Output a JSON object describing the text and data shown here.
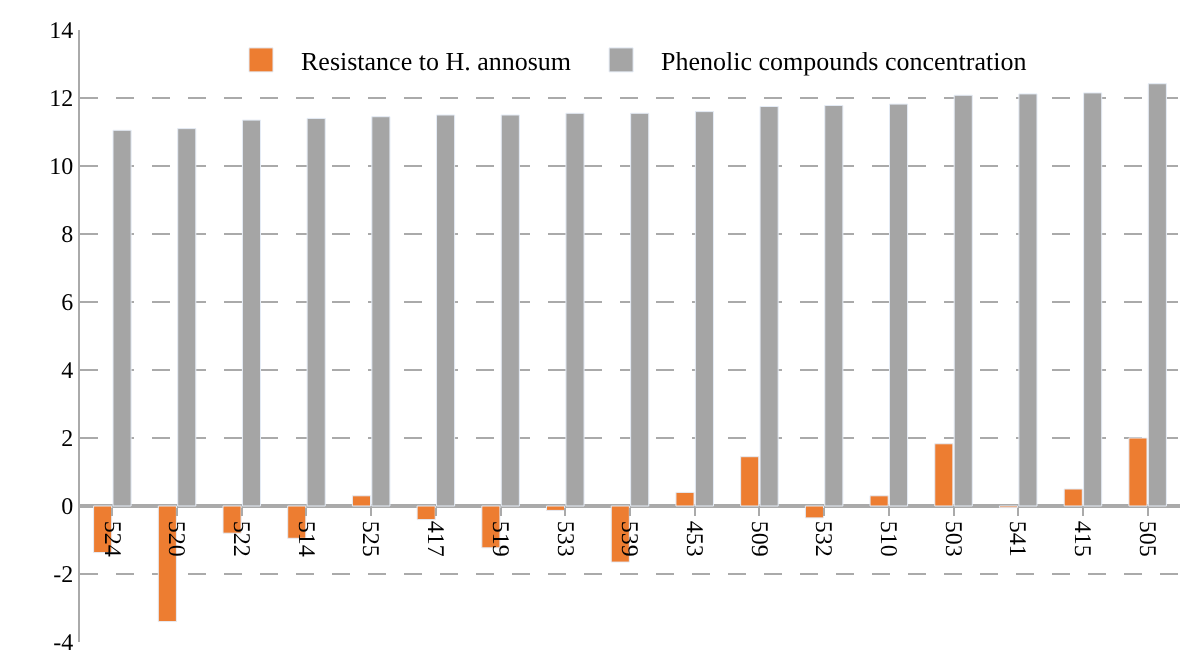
{
  "chart_data": {
    "type": "bar",
    "categories": [
      "524",
      "520",
      "522",
      "514",
      "525",
      "417",
      "519",
      "533",
      "539",
      "453",
      "509",
      "532",
      "510",
      "503",
      "541",
      "415",
      "505"
    ],
    "series": [
      {
        "name": "Resistance to H. annosum",
        "color": "#ed7d31",
        "values": [
          -1.37,
          -3.4,
          -0.8,
          -0.95,
          0.3,
          -0.4,
          -1.23,
          -0.13,
          -1.65,
          0.4,
          1.45,
          -0.35,
          0.3,
          1.83,
          -0.05,
          0.5,
          2.0
        ]
      },
      {
        "name": "Phenolic compounds concentration",
        "color": "#a5a5a5",
        "values": [
          11.05,
          11.1,
          11.35,
          11.4,
          11.45,
          11.5,
          11.5,
          11.55,
          11.55,
          11.6,
          11.75,
          11.78,
          11.82,
          12.08,
          12.12,
          12.15,
          12.42
        ]
      }
    ],
    "ylim": [
      -4,
      14
    ],
    "yticks": [
      -4,
      -2,
      0,
      2,
      4,
      6,
      8,
      10,
      12,
      14
    ],
    "grid": "y",
    "legend": "top"
  }
}
